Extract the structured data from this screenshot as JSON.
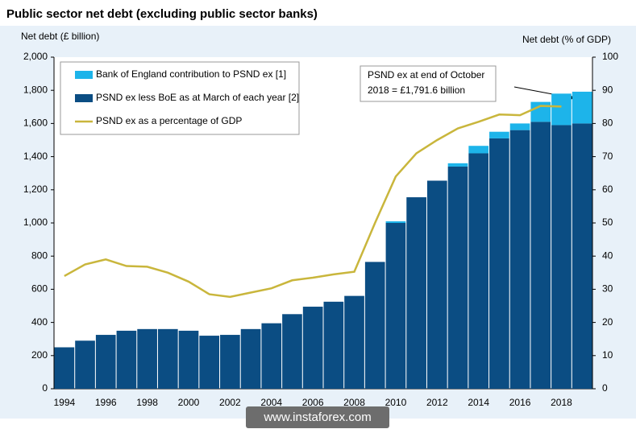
{
  "chart_data": {
    "type": "bar",
    "title": "Public sector net debt (excluding public sector banks)",
    "ylabel": "Net debt (£ billion)",
    "y2label": "Net debt (% of GDP)",
    "categories": [
      "1994",
      null,
      "1996",
      null,
      "1998",
      null,
      "2000",
      null,
      "2002",
      null,
      "2004",
      null,
      "2006",
      null,
      "2008",
      null,
      "2010",
      null,
      "2012",
      null,
      "2014",
      null,
      "2016",
      null,
      "2018",
      null
    ],
    "series": [
      {
        "name": "Bank of England contribution to PSND ex [1]",
        "color": "#1db4ea",
        "values": [
          0,
          0,
          0,
          0,
          0,
          0,
          0,
          0,
          0,
          0,
          0,
          0,
          0,
          0,
          0,
          0,
          10,
          0,
          0,
          20,
          45,
          40,
          40,
          120,
          190,
          191.6
        ]
      },
      {
        "name": "PSND ex less BoE as at March of each year [2]",
        "color": "#0b4d83",
        "values": [
          250,
          290,
          325,
          350,
          360,
          360,
          350,
          320,
          325,
          360,
          395,
          450,
          495,
          525,
          560,
          765,
          1000,
          1155,
          1255,
          1340,
          1420,
          1510,
          1560,
          1610,
          1590,
          1600
        ]
      },
      {
        "name": "PSND ex as a percentage of GDP",
        "color": "#c9b63c",
        "axis": "y2",
        "values": [
          34,
          37.5,
          39,
          37,
          36.8,
          35,
          32.3,
          28.5,
          27.7,
          29,
          30.3,
          32.7,
          33.5,
          34.5,
          35.3,
          50,
          64,
          71,
          75,
          78.5,
          80.5,
          82.7,
          82.5,
          85.3,
          85.1,
          null
        ]
      }
    ],
    "ylim": [
      0,
      2000
    ],
    "yticks": [
      0,
      200,
      400,
      600,
      800,
      {
        "value": 1000,
        "label": "1,000"
      },
      {
        "value": 1200,
        "label": "1,200"
      },
      {
        "value": 1400,
        "label": "1,400"
      },
      {
        "value": 1600,
        "label": "1,600"
      },
      {
        "value": 1800,
        "label": "1,800"
      },
      {
        "value": 2000,
        "label": "2,000"
      }
    ],
    "y2lim": [
      0,
      100
    ],
    "y2ticks": [
      0,
      10,
      20,
      30,
      40,
      50,
      60,
      70,
      80,
      90,
      100
    ],
    "annotation": [
      "PSND ex at end of October",
      "2018 = £1,791.6 billion"
    ],
    "watermark": "www.instaforex.com",
    "grid": false
  }
}
